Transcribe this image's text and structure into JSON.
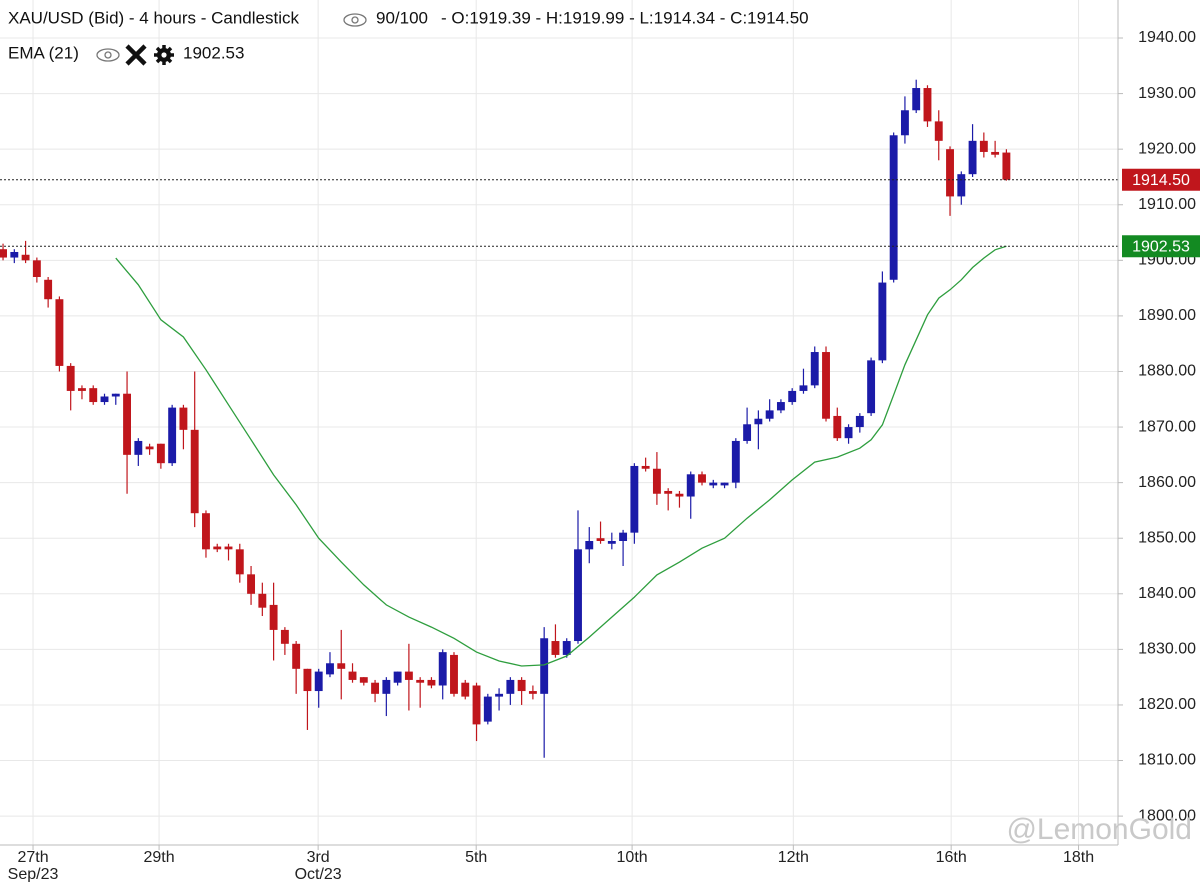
{
  "chart_data": {
    "type": "candlestick",
    "title": "XAU/USD (Bid) - 4 hours - Candlestick",
    "count_label": "90/100",
    "ohlc_label": "- O:1919.39 - H:1919.99 - L:1914.34 - C:1914.50",
    "watermark": "@LemonGold",
    "up_color": "#1b1ba8",
    "down_color": "#c0161c",
    "grid": true,
    "open": [
      1902,
      1900.5,
      1901,
      1900,
      1896.5,
      1893,
      1881,
      1877,
      1877,
      1874.5,
      1875.5,
      1876,
      1865,
      1866.5,
      1867,
      1863.5,
      1873.5,
      1869.5,
      1854.5,
      1848.5,
      1848.5,
      1848,
      1843.5,
      1840,
      1838,
      1833.5,
      1831,
      1826.5,
      1822.5,
      1825.5,
      1827.5,
      1826,
      1825,
      1824,
      1822,
      1824,
      1826,
      1824.5,
      1824.5,
      1823.5,
      1829,
      1824,
      1823.5,
      1817,
      1821.5,
      1822,
      1824.5,
      1822.5,
      1822,
      1831.5,
      1829,
      1831.5,
      1848,
      1850,
      1849,
      1849.5,
      1851,
      1863,
      1862.5,
      1858.5,
      1858,
      1857.5,
      1861.5,
      1859.5,
      1859.5,
      1860,
      1867.5,
      1870.5,
      1871.5,
      1873,
      1874.5,
      1876.5,
      1877.5,
      1883.5,
      1872,
      1868,
      1870,
      1872.5,
      1882,
      1896.5,
      1922.5,
      1927,
      1931,
      1925,
      1920,
      1911.5,
      1915.5,
      1921.5,
      1919.5,
      1919.39
    ],
    "high": [
      1903,
      1902,
      1903.5,
      1900.5,
      1897,
      1893.5,
      1881.5,
      1877.5,
      1877.5,
      1876,
      1876,
      1880,
      1868,
      1867,
      1867,
      1874,
      1874,
      1880,
      1855,
      1849,
      1849,
      1849,
      1845,
      1842,
      1842,
      1834,
      1831.5,
      1826.5,
      1826.5,
      1829.5,
      1833.5,
      1827.5,
      1825,
      1824.5,
      1825,
      1826,
      1831,
      1825,
      1825,
      1830,
      1829.5,
      1824.5,
      1824,
      1822,
      1823,
      1825,
      1825,
      1823.5,
      1834,
      1834.5,
      1832,
      1855,
      1852,
      1853,
      1851,
      1851.5,
      1863.5,
      1864.5,
      1865.5,
      1859,
      1858.5,
      1862,
      1862,
      1860.5,
      1860,
      1868,
      1873.5,
      1873,
      1875,
      1875,
      1877,
      1880.5,
      1884.5,
      1884.5,
      1873.5,
      1870.5,
      1872.5,
      1882.5,
      1898,
      1923,
      1929.5,
      1932.5,
      1931.5,
      1927,
      1920.5,
      1916,
      1924.5,
      1923,
      1921.5,
      1919.99
    ],
    "low": [
      1900,
      1899.5,
      1899.5,
      1896,
      1891.5,
      1880,
      1873,
      1875,
      1874,
      1874,
      1874,
      1858,
      1863,
      1865,
      1862.5,
      1863,
      1866,
      1852,
      1846.5,
      1847.5,
      1846,
      1842,
      1838,
      1836,
      1828,
      1829,
      1822,
      1815.5,
      1819.5,
      1825,
      1821,
      1824,
      1823.5,
      1820.5,
      1818,
      1823.5,
      1819,
      1819.5,
      1823,
      1821,
      1821.5,
      1821,
      1813.5,
      1816.5,
      1819,
      1820,
      1820,
      1821,
      1810.5,
      1828.5,
      1828.5,
      1831,
      1845.5,
      1849,
      1848,
      1845,
      1849,
      1862,
      1856,
      1855,
      1855.5,
      1853.5,
      1859.5,
      1859,
      1859,
      1859,
      1867,
      1866,
      1871,
      1872.5,
      1874,
      1876,
      1877,
      1871,
      1867.5,
      1867,
      1869,
      1872,
      1881.5,
      1896,
      1921,
      1926.5,
      1924,
      1918,
      1908,
      1910,
      1915,
      1918.5,
      1918.5,
      1914.34
    ],
    "close": [
      1900.5,
      1901.5,
      1900,
      1897,
      1893,
      1881,
      1876.5,
      1876.5,
      1874.5,
      1875.5,
      1876,
      1865,
      1867.5,
      1866,
      1863.5,
      1873.5,
      1869.5,
      1854.5,
      1848,
      1848,
      1848,
      1843.5,
      1840,
      1837.5,
      1833.5,
      1831,
      1826.5,
      1822.5,
      1826,
      1827.5,
      1826.5,
      1824.5,
      1824,
      1822,
      1824.5,
      1826,
      1824.5,
      1824,
      1823.5,
      1829.5,
      1822,
      1821.5,
      1816.5,
      1821.5,
      1822,
      1824.5,
      1822.5,
      1822,
      1832,
      1829,
      1831.5,
      1848,
      1849.5,
      1849.5,
      1849.5,
      1851,
      1863,
      1862.5,
      1858,
      1858,
      1857.5,
      1861.5,
      1860,
      1860,
      1860,
      1867.5,
      1870.5,
      1871.5,
      1873,
      1874.5,
      1876.5,
      1877.5,
      1883.5,
      1871.5,
      1868,
      1870,
      1872,
      1882,
      1896,
      1922.5,
      1927,
      1931,
      1925,
      1921.5,
      1911.5,
      1915.5,
      1921.5,
      1919.5,
      1919,
      1914.5
    ],
    "ema": {
      "name": "EMA (21)",
      "color": "#2e9e3e",
      "x": [
        10,
        12,
        14,
        16,
        18,
        20,
        22,
        24,
        26,
        28,
        30,
        32,
        34,
        36,
        38,
        40,
        42,
        44,
        46,
        48,
        50,
        52,
        54,
        56,
        58,
        60,
        62,
        64,
        66,
        68,
        70,
        72,
        74,
        76,
        77,
        78,
        79,
        80,
        81,
        82,
        83,
        84,
        85,
        86,
        87,
        88,
        89
      ],
      "values": [
        1900.4,
        1895.6,
        1889.3,
        1886.2,
        1880.3,
        1874,
        1867.7,
        1861.4,
        1856,
        1850,
        1845.7,
        1841.6,
        1838,
        1835.8,
        1834,
        1832,
        1829.5,
        1827.9,
        1827,
        1827.2,
        1828.8,
        1832.2,
        1835.8,
        1839.4,
        1843.4,
        1845.7,
        1848.2,
        1850,
        1853.6,
        1856.9,
        1860.5,
        1863.7,
        1864.6,
        1866.2,
        1867.7,
        1870.4,
        1875.8,
        1881.2,
        1885.7,
        1890.2,
        1893.2,
        1894.7,
        1896.5,
        1898.7,
        1900.4,
        1901.9,
        1902.53
      ],
      "value": 1902.53,
      "label": "1902.53",
      "tag_color": "#138a22"
    },
    "last_price": {
      "value": 1914.5,
      "label": "1914.50",
      "tag_color": "#c0161c"
    },
    "xlim": [
      -0.27,
      98.9
    ],
    "xticks": [
      {
        "value": 2.66,
        "label": "27th",
        "sublabel": "Sep/23"
      },
      {
        "value": 13.84,
        "label": "29th"
      },
      {
        "value": 27.95,
        "label": "3rd",
        "sublabel": "Oct/23"
      },
      {
        "value": 41.97,
        "label": "5th"
      },
      {
        "value": 55.8,
        "label": "10th"
      },
      {
        "value": 70.1,
        "label": "12th"
      },
      {
        "value": 84.1,
        "label": "16th"
      },
      {
        "value": 95.4,
        "label": "18th"
      }
    ],
    "ylim": [
      1794.8,
      1946.84
    ],
    "yticks": [
      {
        "value": 1800,
        "label": "1800.00"
      },
      {
        "value": 1810,
        "label": "1810.00"
      },
      {
        "value": 1820,
        "label": "1820.00"
      },
      {
        "value": 1830,
        "label": "1830.00"
      },
      {
        "value": 1840,
        "label": "1840.00"
      },
      {
        "value": 1850,
        "label": "1850.00"
      },
      {
        "value": 1860,
        "label": "1860.00"
      },
      {
        "value": 1870,
        "label": "1870.00"
      },
      {
        "value": 1880,
        "label": "1880.00"
      },
      {
        "value": 1890,
        "label": "1890.00"
      },
      {
        "value": 1900,
        "label": "1900.00"
      },
      {
        "value": 1910,
        "label": "1910.00"
      },
      {
        "value": 1920,
        "label": "1920.00"
      },
      {
        "value": 1930,
        "label": "1930.00"
      },
      {
        "value": 1940,
        "label": "1940.00"
      }
    ]
  }
}
